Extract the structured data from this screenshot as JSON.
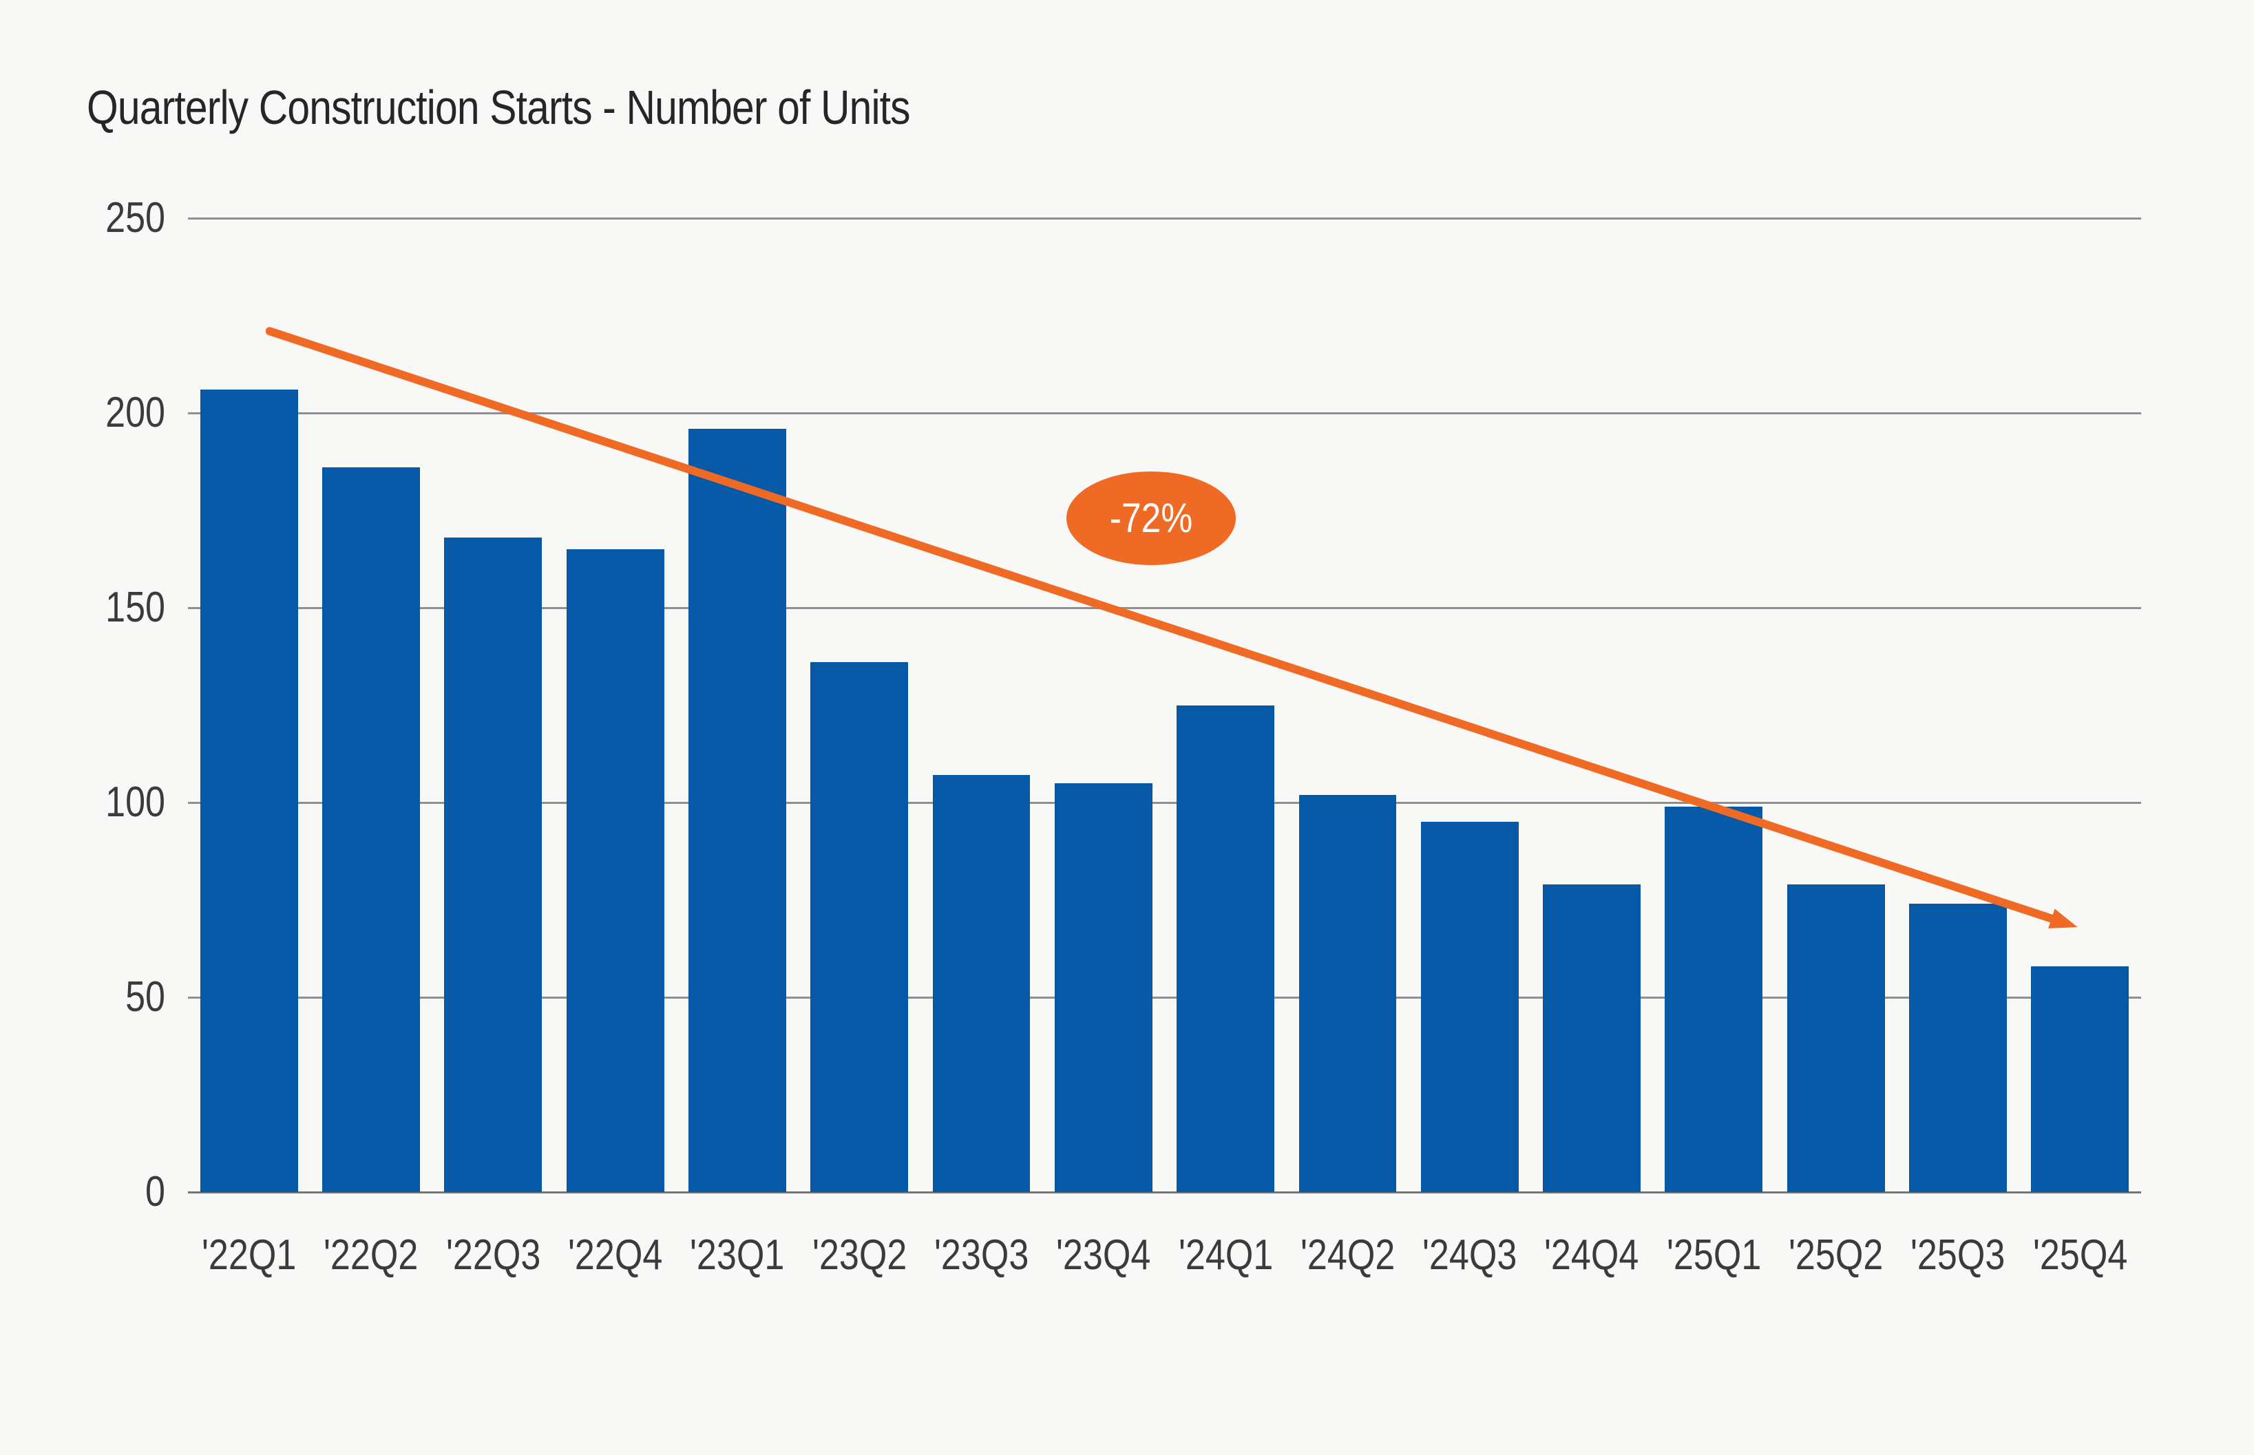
{
  "chart_data": {
    "type": "bar",
    "title": "Quarterly Construction Starts - Number of Units",
    "categories": [
      "'22Q1",
      "'22Q2",
      "'22Q3",
      "'22Q4",
      "'23Q1",
      "'23Q2",
      "'23Q3",
      "'23Q4",
      "'24Q1",
      "'24Q2",
      "'24Q3",
      "'24Q4",
      "'25Q1",
      "'25Q2",
      "'25Q3",
      "'25Q4"
    ],
    "values": [
      206,
      186,
      168,
      165,
      196,
      136,
      107,
      105,
      125,
      102,
      95,
      79,
      99,
      79,
      74,
      58
    ],
    "xlabel": "",
    "ylabel": "",
    "ylim": [
      0,
      250
    ],
    "yticks": [
      0,
      50,
      100,
      150,
      200,
      250
    ],
    "grid": "horizontal",
    "legend": "none",
    "annotation": {
      "label": "-72%",
      "pos": 7.89,
      "value": 173
    },
    "trend_arrow": {
      "from": {
        "pos": 0.67,
        "value": 221
      },
      "to": {
        "pos": 15.48,
        "value": 68
      }
    },
    "colors": {
      "bar": "#0559a6",
      "accent": "#ee6a25",
      "grid": "#8f8f8f",
      "baseline": "#757575",
      "axis_text": "#3b3b3b",
      "title_text": "#262626",
      "background": "#f8f8f6",
      "badge_text": "#ffffff"
    }
  }
}
